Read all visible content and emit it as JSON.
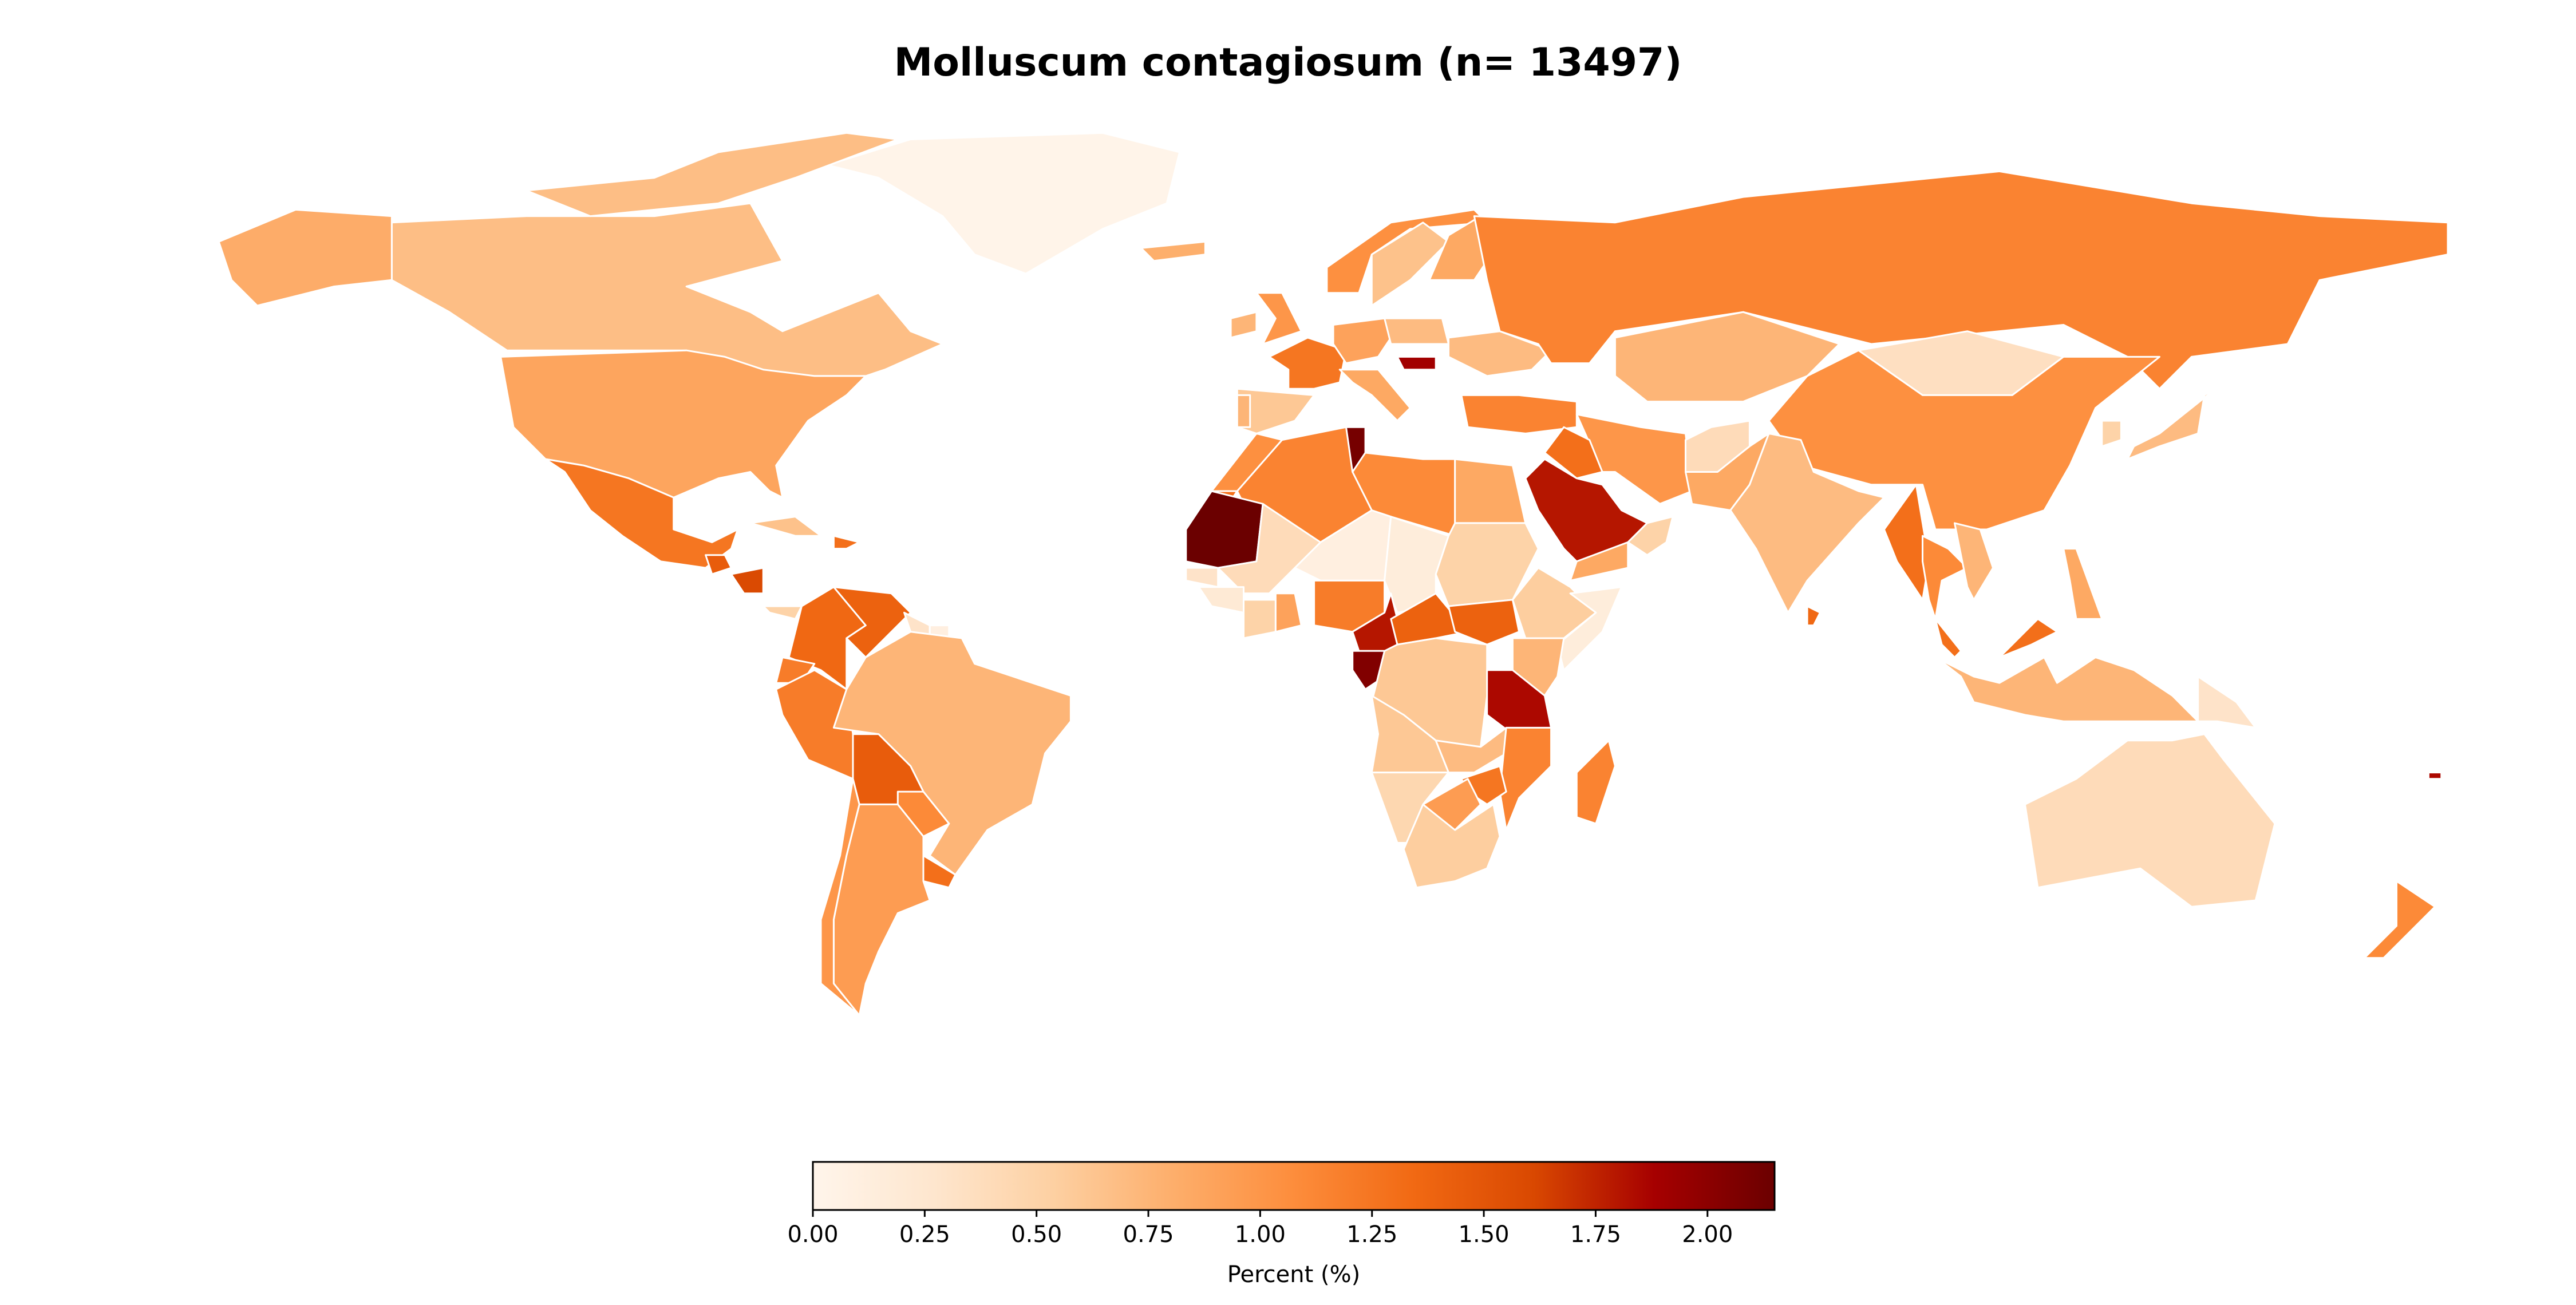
{
  "title": "Molluscum contagiosum (n= 13497)",
  "map": {
    "projection": "equirectangular",
    "no_data_color": "#dddddd",
    "border_color": "#ffffff",
    "regions": [
      {
        "name": "Greenland",
        "value": 0.02
      },
      {
        "name": "Canada",
        "value": 0.68
      },
      {
        "name": "Alaska (United States)",
        "value": 0.82
      },
      {
        "name": "United States",
        "value": 0.88
      },
      {
        "name": "Mexico",
        "value": 1.25
      },
      {
        "name": "Guatemala",
        "value": 1.45
      },
      {
        "name": "Nicaragua",
        "value": 1.6
      },
      {
        "name": "Panama",
        "value": 0.5
      },
      {
        "name": "Cuba",
        "value": 0.65
      },
      {
        "name": "Dominican Republic",
        "value": 1.3
      },
      {
        "name": "Colombia",
        "value": 1.35
      },
      {
        "name": "Venezuela",
        "value": 1.4
      },
      {
        "name": "Guyana",
        "value": 0.3
      },
      {
        "name": "Suriname",
        "value": 0.1
      },
      {
        "name": "Ecuador",
        "value": 1.2
      },
      {
        "name": "Peru",
        "value": 1.2
      },
      {
        "name": "Brazil",
        "value": 0.75
      },
      {
        "name": "Bolivia",
        "value": 1.45
      },
      {
        "name": "Paraguay",
        "value": 1.1
      },
      {
        "name": "Uruguay",
        "value": 1.3
      },
      {
        "name": "Argentina",
        "value": 0.95
      },
      {
        "name": "Chile",
        "value": 1.0
      },
      {
        "name": "Iceland",
        "value": 0.8
      },
      {
        "name": "United Kingdom",
        "value": 1.0
      },
      {
        "name": "Ireland",
        "value": 0.75
      },
      {
        "name": "Norway",
        "value": 1.05
      },
      {
        "name": "Sweden",
        "value": 0.65
      },
      {
        "name": "Finland",
        "value": 0.85
      },
      {
        "name": "France",
        "value": 1.25
      },
      {
        "name": "Spain",
        "value": 0.6
      },
      {
        "name": "Portugal",
        "value": 0.75
      },
      {
        "name": "Germany",
        "value": 0.9
      },
      {
        "name": "Italy",
        "value": 0.85
      },
      {
        "name": "Poland",
        "value": 0.7
      },
      {
        "name": "Hungary",
        "value": 1.9
      },
      {
        "name": "Ukraine",
        "value": 0.7
      },
      {
        "name": "Turkey",
        "value": 1.15
      },
      {
        "name": "Russia",
        "value": 1.15
      },
      {
        "name": "Kazakhstan",
        "value": 0.75
      },
      {
        "name": "Mongolia",
        "value": 0.35
      },
      {
        "name": "China",
        "value": 1.05
      },
      {
        "name": "Japan",
        "value": 0.7
      },
      {
        "name": "South Korea",
        "value": 0.5
      },
      {
        "name": "Iran",
        "value": 1.0
      },
      {
        "name": "Iraq",
        "value": 1.3
      },
      {
        "name": "Saudi Arabia",
        "value": 1.8
      },
      {
        "name": "Yemen",
        "value": 0.85
      },
      {
        "name": "Oman",
        "value": 0.5
      },
      {
        "name": "Afghanistan",
        "value": 0.4
      },
      {
        "name": "Pakistan",
        "value": 0.85
      },
      {
        "name": "India",
        "value": 0.7
      },
      {
        "name": "Sri Lanka",
        "value": 1.35
      },
      {
        "name": "Myanmar",
        "value": 1.3
      },
      {
        "name": "Thailand",
        "value": 1.1
      },
      {
        "name": "Vietnam",
        "value": 0.75
      },
      {
        "name": "Malaysia",
        "value": 1.3
      },
      {
        "name": "Philippines",
        "value": 0.85
      },
      {
        "name": "Indonesia",
        "value": 0.75
      },
      {
        "name": "Papua New Guinea",
        "value": 0.3
      },
      {
        "name": "Australia",
        "value": 0.4
      },
      {
        "name": "New Zealand",
        "value": 1.1
      },
      {
        "name": "Fiji",
        "value": 1.85
      },
      {
        "name": "Morocco",
        "value": 1.05
      },
      {
        "name": "Algeria",
        "value": 1.15
      },
      {
        "name": "Tunisia",
        "value": 2.1
      },
      {
        "name": "Libya",
        "value": 1.1
      },
      {
        "name": "Egypt",
        "value": 0.85
      },
      {
        "name": "Mauritania",
        "value": 2.15
      },
      {
        "name": "Mali",
        "value": 0.4
      },
      {
        "name": "Niger",
        "value": 0.1
      },
      {
        "name": "Chad",
        "value": 0.15
      },
      {
        "name": "Sudan",
        "value": 0.5
      },
      {
        "name": "Ethiopia",
        "value": 0.55
      },
      {
        "name": "Somalia",
        "value": 0.15
      },
      {
        "name": "Nigeria",
        "value": 1.2
      },
      {
        "name": "Cameroon",
        "value": 1.8
      },
      {
        "name": "Gabon",
        "value": 2.05
      },
      {
        "name": "Central African Republic",
        "value": 1.4
      },
      {
        "name": "South Sudan",
        "value": 1.4
      },
      {
        "name": "DR Congo",
        "value": 0.6
      },
      {
        "name": "Kenya",
        "value": 0.75
      },
      {
        "name": "Tanzania",
        "value": 1.85
      },
      {
        "name": "Angola",
        "value": 0.6
      },
      {
        "name": "Zambia",
        "value": 0.7
      },
      {
        "name": "Mozambique",
        "value": 1.15
      },
      {
        "name": "Zimbabwe",
        "value": 1.25
      },
      {
        "name": "Namibia",
        "value": 0.45
      },
      {
        "name": "Botswana",
        "value": 0.95
      },
      {
        "name": "South Africa",
        "value": 0.55
      },
      {
        "name": "Madagascar",
        "value": 1.15
      },
      {
        "name": "Senegal",
        "value": 0.3
      },
      {
        "name": "Guinea",
        "value": 0.2
      },
      {
        "name": "Ivory Coast",
        "value": 0.5
      },
      {
        "name": "Ghana",
        "value": 0.9
      },
      {
        "name": "Western Sahara",
        "value": 1.3
      }
    ]
  },
  "colorbar": {
    "label": "Percent (%)",
    "min": 0.0,
    "max": 2.15,
    "ticks": [
      "0.00",
      "0.25",
      "0.50",
      "0.75",
      "1.00",
      "1.25",
      "1.50",
      "1.75",
      "2.00"
    ],
    "colormap_stops": [
      "#fff5eb",
      "#fee6ce",
      "#fdd0a2",
      "#fdae6b",
      "#fd8d3c",
      "#f16913",
      "#d94801",
      "#a60000",
      "#6b0000"
    ]
  }
}
